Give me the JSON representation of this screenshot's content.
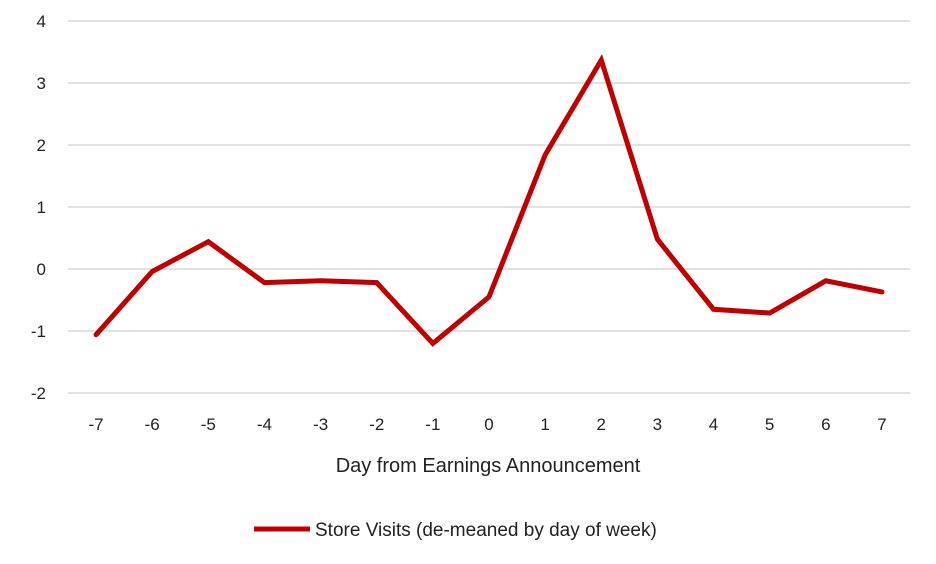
{
  "chart_data": {
    "type": "line",
    "title": "",
    "xlabel": "Day from Earnings Announcement",
    "ylabel": "",
    "x": [
      -7,
      -6,
      -5,
      -4,
      -3,
      -2,
      -1,
      0,
      1,
      2,
      3,
      4,
      5,
      6,
      7
    ],
    "series": [
      {
        "name": "Store Visits (de-meaned by day of week)",
        "color": "#c00000",
        "values": [
          -1.06,
          -0.04,
          0.44,
          -0.22,
          -0.19,
          -0.22,
          -1.2,
          -0.45,
          1.84,
          3.37,
          0.48,
          -0.65,
          -0.71,
          -0.19,
          -0.37
        ]
      }
    ],
    "ylim": [
      -2,
      4
    ],
    "yticks": [
      -2,
      -1,
      0,
      1,
      2,
      3,
      4
    ],
    "grid": true,
    "gridColor": "#d9d9d9",
    "legend": "bottom"
  }
}
